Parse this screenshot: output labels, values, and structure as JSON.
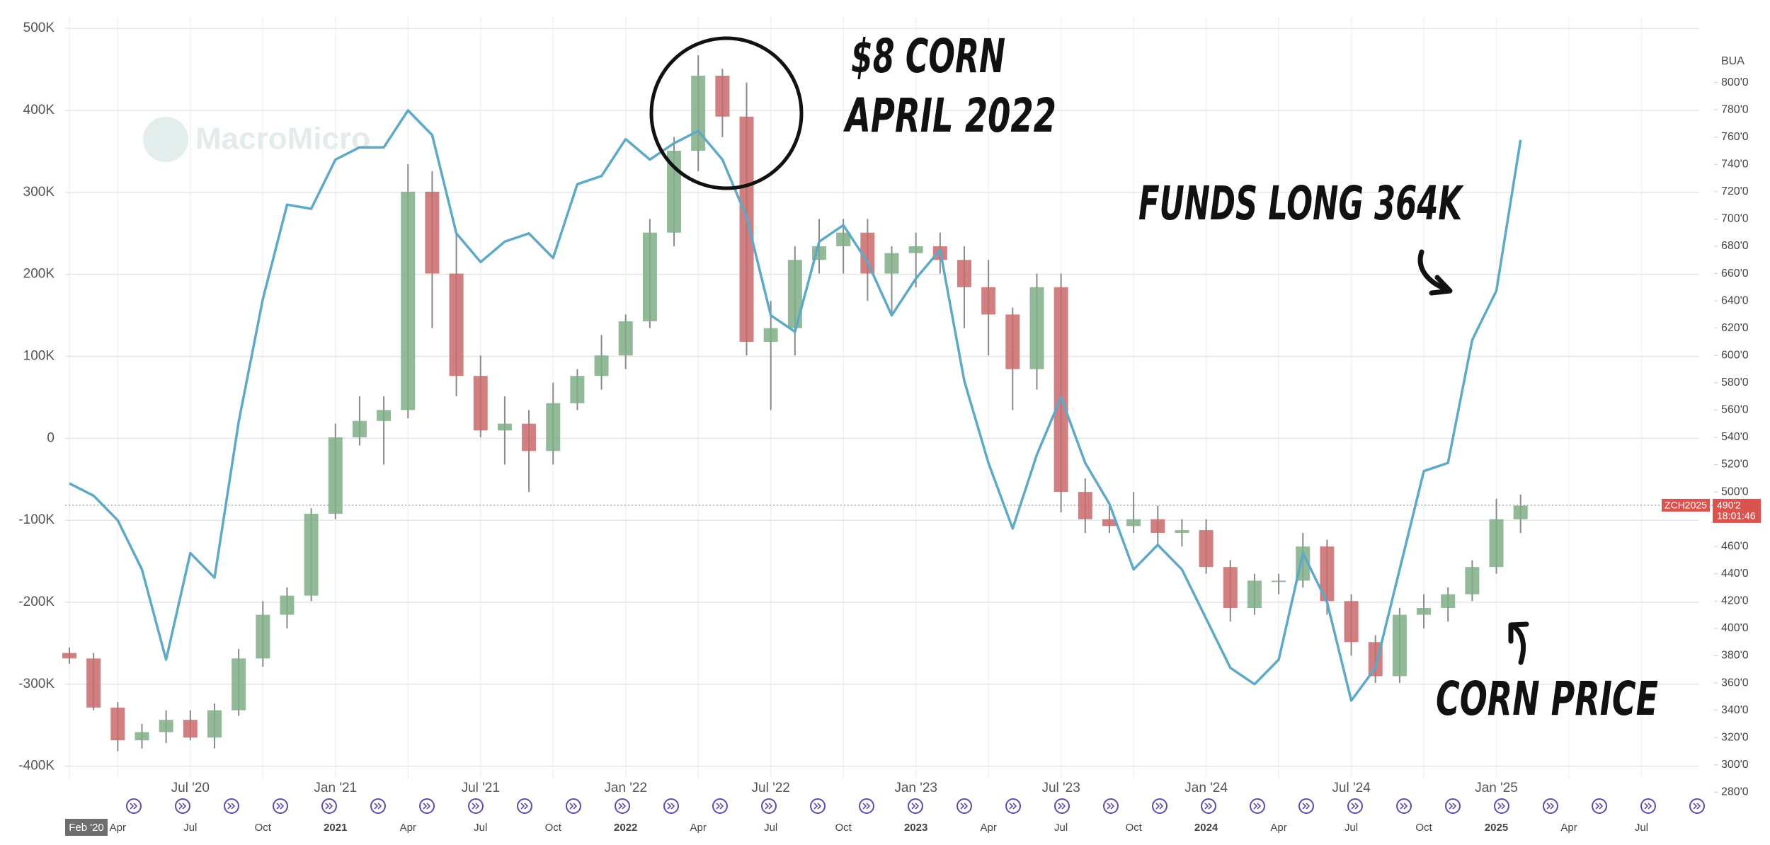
{
  "chart_data": {
    "type": "combo",
    "watermark": "MacroMicro",
    "x": [
      "2020-02",
      "2020-03",
      "2020-04",
      "2020-05",
      "2020-06",
      "2020-07",
      "2020-08",
      "2020-09",
      "2020-10",
      "2020-11",
      "2020-12",
      "2021-01",
      "2021-02",
      "2021-03",
      "2021-04",
      "2021-05",
      "2021-06",
      "2021-07",
      "2021-08",
      "2021-09",
      "2021-10",
      "2021-11",
      "2021-12",
      "2022-01",
      "2022-02",
      "2022-03",
      "2022-04",
      "2022-05",
      "2022-06",
      "2022-07",
      "2022-08",
      "2022-09",
      "2022-10",
      "2022-11",
      "2022-12",
      "2023-01",
      "2023-02",
      "2023-03",
      "2023-04",
      "2023-05",
      "2023-06",
      "2023-07",
      "2023-08",
      "2023-09",
      "2023-10",
      "2023-11",
      "2023-12",
      "2024-01",
      "2024-02",
      "2024-03",
      "2024-04",
      "2024-05",
      "2024-06",
      "2024-07",
      "2024-08",
      "2024-09",
      "2024-10",
      "2024-11",
      "2024-12",
      "2025-01",
      "2025-02"
    ],
    "xlim": [
      "2020-02",
      "2025-10"
    ],
    "xticks": [
      {
        "value": "2020-07",
        "label": "Jul '20"
      },
      {
        "value": "2021-01",
        "label": "Jan '21"
      },
      {
        "value": "2021-07",
        "label": "Jul '21"
      },
      {
        "value": "2022-01",
        "label": "Jan '22"
      },
      {
        "value": "2022-07",
        "label": "Jul '22"
      },
      {
        "value": "2023-01",
        "label": "Jan '23"
      },
      {
        "value": "2023-07",
        "label": "Jul '23"
      },
      {
        "value": "2024-01",
        "label": "Jan '24"
      },
      {
        "value": "2024-07",
        "label": "Jul '24"
      },
      {
        "value": "2025-01",
        "label": "Jan '25"
      }
    ],
    "xticks_minor": [
      {
        "value": "2020-02",
        "label": "Feb '20"
      },
      {
        "value": "2020-04",
        "label": "Apr"
      },
      {
        "value": "2020-07",
        "label": "Jul"
      },
      {
        "value": "2020-10",
        "label": "Oct"
      },
      {
        "value": "2021-01",
        "label": "2021"
      },
      {
        "value": "2021-04",
        "label": "Apr"
      },
      {
        "value": "2021-07",
        "label": "Jul"
      },
      {
        "value": "2021-10",
        "label": "Oct"
      },
      {
        "value": "2022-01",
        "label": "2022"
      },
      {
        "value": "2022-04",
        "label": "Apr"
      },
      {
        "value": "2022-07",
        "label": "Jul"
      },
      {
        "value": "2022-10",
        "label": "Oct"
      },
      {
        "value": "2023-01",
        "label": "2023"
      },
      {
        "value": "2023-04",
        "label": "Apr"
      },
      {
        "value": "2023-07",
        "label": "Jul"
      },
      {
        "value": "2023-10",
        "label": "Oct"
      },
      {
        "value": "2024-01",
        "label": "2024"
      },
      {
        "value": "2024-04",
        "label": "Apr"
      },
      {
        "value": "2024-07",
        "label": "Jul"
      },
      {
        "value": "2024-10",
        "label": "Oct"
      },
      {
        "value": "2025-01",
        "label": "2025"
      },
      {
        "value": "2025-04",
        "label": "Apr"
      },
      {
        "value": "2025-07",
        "label": "Jul"
      }
    ],
    "ylim": [
      -440000,
      514000
    ],
    "yticks": [
      {
        "value": -400000,
        "label": "-400K"
      },
      {
        "value": -300000,
        "label": "-300K"
      },
      {
        "value": -200000,
        "label": "-200K"
      },
      {
        "value": -100000,
        "label": "-100K"
      },
      0,
      {
        "value": 100000,
        "label": "100K"
      },
      {
        "value": 200000,
        "label": "200K"
      },
      {
        "value": 300000,
        "label": "300K"
      },
      {
        "value": 400000,
        "label": "400K"
      },
      {
        "value": 500000,
        "label": "500K"
      }
    ],
    "y2label": "BUA",
    "y2lim": [
      275,
      848
    ],
    "y2ticks": [
      {
        "value": 280,
        "label": "280'0"
      },
      {
        "value": 300,
        "label": "300'0"
      },
      {
        "value": 320,
        "label": "320'0"
      },
      {
        "value": 340,
        "label": "340'0"
      },
      {
        "value": 360,
        "label": "360'0"
      },
      {
        "value": 380,
        "label": "380'0"
      },
      {
        "value": 400,
        "label": "400'0"
      },
      {
        "value": 420,
        "label": "420'0"
      },
      {
        "value": 440,
        "label": "440'0"
      },
      {
        "value": 460,
        "label": "460'0"
      },
      {
        "value": 480,
        "label": "480'0"
      },
      {
        "value": 500,
        "label": "500'0"
      },
      {
        "value": 520,
        "label": "520'0"
      },
      {
        "value": 540,
        "label": "540'0"
      },
      {
        "value": 560,
        "label": "560'0"
      },
      {
        "value": 580,
        "label": "580'0"
      },
      {
        "value": 600,
        "label": "600'0"
      },
      {
        "value": 620,
        "label": "620'0"
      },
      {
        "value": 640,
        "label": "640'0"
      },
      {
        "value": 660,
        "label": "660'0"
      },
      {
        "value": 680,
        "label": "680'0"
      },
      {
        "value": 700,
        "label": "700'0"
      },
      {
        "value": 720,
        "label": "720'0"
      },
      {
        "value": 740,
        "label": "740'0"
      },
      {
        "value": 760,
        "label": "760'0"
      },
      {
        "value": 780,
        "label": "780'0"
      },
      {
        "value": 800,
        "label": "800'0"
      }
    ],
    "grid": true,
    "series": [
      {
        "type": "line",
        "color": "#5ea9c8",
        "values": [
          -55000,
          -70000,
          -100000,
          -160000,
          -270000,
          -140000,
          -170000,
          20000,
          170000,
          285000,
          280000,
          340000,
          355000,
          355000,
          400000,
          370000,
          250000,
          215000,
          240000,
          250000,
          220000,
          310000,
          320000,
          365000,
          340000,
          360000,
          375000,
          340000,
          270000,
          150000,
          130000,
          240000,
          260000,
          215000,
          150000,
          195000,
          230000,
          70000,
          -30000,
          -110000,
          -20000,
          50000,
          -30000,
          -80000,
          -160000,
          -130000,
          -160000,
          -220000,
          -280000,
          -300000,
          -270000,
          -140000,
          -200000,
          -320000,
          -280000,
          -160000,
          -40000,
          -30000,
          120000,
          180000,
          364000
        ]
      },
      {
        "type": "candlestick",
        "axis": "y2",
        "up_color": "#7fae86",
        "down_color": "#c9686b",
        "wick_color": "#8a8a8a",
        "open": [
          382,
          378,
          342,
          318,
          324,
          333,
          320,
          340,
          378,
          410,
          424,
          484,
          540,
          552,
          560,
          720,
          660,
          585,
          545,
          550,
          530,
          565,
          585,
          600,
          625,
          690,
          750,
          805,
          775,
          610,
          620,
          670,
          680,
          690,
          660,
          675,
          680,
          670,
          650,
          630,
          590,
          650,
          500,
          480,
          475,
          480,
          470,
          472,
          445,
          415,
          435,
          435,
          460,
          420,
          390,
          365,
          410,
          415,
          425,
          445,
          480
        ],
        "high": [
          386,
          382,
          346,
          330,
          340,
          340,
          345,
          385,
          420,
          430,
          488,
          550,
          570,
          570,
          740,
          735,
          690,
          600,
          570,
          560,
          580,
          590,
          615,
          630,
          700,
          760,
          820,
          810,
          800,
          640,
          680,
          700,
          700,
          700,
          680,
          690,
          690,
          680,
          670,
          635,
          660,
          660,
          510,
          490,
          500,
          490,
          480,
          480,
          450,
          440,
          440,
          470,
          465,
          425,
          395,
          415,
          425,
          430,
          450,
          495,
          498
        ],
        "low": [
          374,
          340,
          310,
          312,
          316,
          318,
          312,
          336,
          372,
          400,
          420,
          480,
          534,
          520,
          554,
          620,
          570,
          540,
          520,
          500,
          520,
          560,
          575,
          590,
          620,
          680,
          735,
          760,
          600,
          560,
          600,
          660,
          660,
          640,
          630,
          650,
          660,
          620,
          600,
          560,
          575,
          485,
          470,
          470,
          470,
          460,
          460,
          440,
          405,
          410,
          425,
          430,
          410,
          380,
          360,
          360,
          400,
          405,
          420,
          440,
          470
        ],
        "close": [
          378,
          342,
          318,
          324,
          333,
          320,
          340,
          378,
          410,
          424,
          484,
          540,
          552,
          560,
          720,
          660,
          585,
          545,
          550,
          530,
          565,
          585,
          600,
          625,
          690,
          750,
          805,
          775,
          610,
          620,
          670,
          680,
          690,
          660,
          675,
          680,
          670,
          650,
          630,
          590,
          650,
          500,
          480,
          475,
          480,
          470,
          472,
          445,
          415,
          435,
          435,
          460,
          420,
          390,
          365,
          410,
          415,
          425,
          445,
          480,
          490
        ]
      }
    ],
    "price_tag": {
      "symbol": "ZCH2025",
      "price": {
        "value": 490.25,
        "label": "490'2"
      },
      "time": "18:01:46",
      "color": "#d9534f"
    },
    "annotations": [
      "$8 CORN",
      "APRIL 2022",
      "FUNDS LONG 364K",
      "CORN PRICE"
    ]
  }
}
